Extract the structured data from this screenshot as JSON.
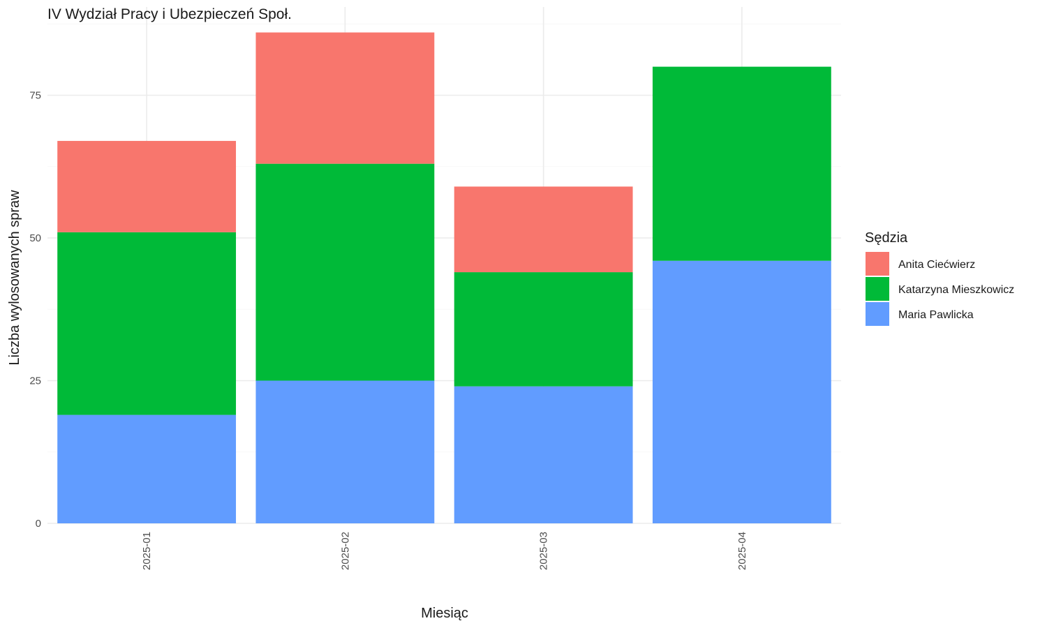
{
  "chart_data": {
    "type": "bar",
    "stacked": true,
    "title": "IV Wydział Pracy i Ubezpieczeń Społ.",
    "xlabel": "Miesiąc",
    "ylabel": "Liczba wylosowanych spraw",
    "categories": [
      "2025-01",
      "2025-02",
      "2025-03",
      "2025-04"
    ],
    "series": [
      {
        "name": "Anita Ciećwierz",
        "color": "#F8766D",
        "values": [
          16,
          23,
          15,
          0
        ]
      },
      {
        "name": "Katarzyna Mieszkowicz",
        "color": "#00BA38",
        "values": [
          32,
          38,
          20,
          34
        ]
      },
      {
        "name": "Maria Pawlicka",
        "color": "#619CFF",
        "values": [
          19,
          25,
          24,
          46
        ]
      }
    ],
    "stack_order_bottom_to_top": [
      "Maria Pawlicka",
      "Katarzyna Mieszkowicz",
      "Anita Ciećwierz"
    ],
    "yticks": [
      0,
      25,
      50,
      75
    ],
    "ylim": [
      0,
      90
    ],
    "grid": true,
    "legend": {
      "title": "Sędzia",
      "position": "right"
    }
  }
}
